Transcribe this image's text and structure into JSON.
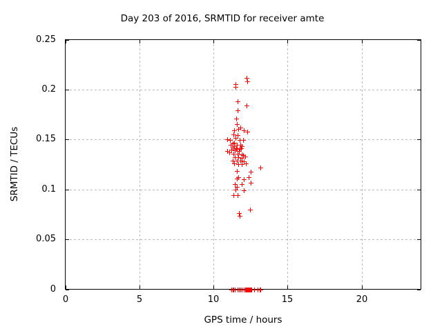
{
  "chart_data": {
    "type": "scatter",
    "title": "Day 203 of 2016, SRMTID for receiver amte",
    "xlabel": "GPS time / hours",
    "ylabel": "SRMTID / TECUs",
    "xlim": [
      0,
      24
    ],
    "ylim": [
      0,
      0.25
    ],
    "xticks": [
      0,
      5,
      10,
      15,
      20
    ],
    "xtick_labels": [
      "0",
      "5",
      "10",
      "15",
      "20"
    ],
    "yticks": [
      0,
      0.05,
      0.1,
      0.15,
      0.2,
      0.25
    ],
    "ytick_labels": [
      "0",
      "0.05",
      "0.1",
      "0.15",
      "0.2",
      "0.25"
    ],
    "grid": true,
    "grid_style": "dotted",
    "grid_color": "#b8b8b8",
    "legend_position": "none",
    "marker": "plus",
    "marker_color": "#ff0000",
    "series": [
      {
        "name": "SRMTID",
        "points": [
          [
            12.22,
            0.2115
          ],
          [
            12.26,
            0.2085
          ],
          [
            11.47,
            0.2055
          ],
          [
            11.5,
            0.2025
          ],
          [
            11.64,
            0.1885
          ],
          [
            12.22,
            0.184
          ],
          [
            11.63,
            0.179
          ],
          [
            11.52,
            0.1712
          ],
          [
            11.59,
            0.1655
          ],
          [
            11.83,
            0.162
          ],
          [
            11.67,
            0.1605
          ],
          [
            11.41,
            0.1592
          ],
          [
            12.06,
            0.159
          ],
          [
            12.29,
            0.158
          ],
          [
            11.36,
            0.1552
          ],
          [
            11.63,
            0.1545
          ],
          [
            11.47,
            0.1518
          ],
          [
            10.94,
            0.15
          ],
          [
            11.75,
            0.1498
          ],
          [
            11.13,
            0.1494
          ],
          [
            11.98,
            0.1494
          ],
          [
            11.41,
            0.1466
          ],
          [
            11.28,
            0.146
          ],
          [
            11.16,
            0.1448
          ],
          [
            11.59,
            0.1447
          ],
          [
            11.83,
            0.1444
          ],
          [
            11.39,
            0.1436
          ],
          [
            11.9,
            0.143
          ],
          [
            11.31,
            0.142
          ],
          [
            11.59,
            0.1413
          ],
          [
            11.87,
            0.1413
          ],
          [
            11.75,
            0.1406
          ],
          [
            11.52,
            0.1405
          ],
          [
            11.21,
            0.1397
          ],
          [
            11.44,
            0.139
          ],
          [
            10.93,
            0.1383
          ],
          [
            11.72,
            0.1383
          ],
          [
            11.05,
            0.1373
          ],
          [
            11.36,
            0.136
          ],
          [
            11.63,
            0.1355
          ],
          [
            11.9,
            0.135
          ],
          [
            11.98,
            0.134
          ],
          [
            12.14,
            0.1327
          ],
          [
            11.44,
            0.132
          ],
          [
            11.67,
            0.132
          ],
          [
            11.9,
            0.1313
          ],
          [
            11.28,
            0.129
          ],
          [
            11.56,
            0.1286
          ],
          [
            11.83,
            0.1286
          ],
          [
            12.06,
            0.1281
          ],
          [
            12.19,
            0.1263
          ],
          [
            11.41,
            0.1258
          ],
          [
            11.67,
            0.1256
          ],
          [
            11.93,
            0.1251
          ],
          [
            13.15,
            0.1217
          ],
          [
            11.56,
            0.1186
          ],
          [
            12.5,
            0.1175
          ],
          [
            11.67,
            0.112
          ],
          [
            12.37,
            0.112
          ],
          [
            11.59,
            0.1106
          ],
          [
            12.06,
            0.1101
          ],
          [
            12.53,
            0.1066
          ],
          [
            11.44,
            0.1055
          ],
          [
            11.9,
            0.105
          ],
          [
            11.56,
            0.1027
          ],
          [
            11.47,
            0.0997
          ],
          [
            12.03,
            0.0992
          ],
          [
            11.36,
            0.0944
          ],
          [
            11.63,
            0.094
          ],
          [
            12.45,
            0.0796
          ],
          [
            11.72,
            0.076
          ],
          [
            11.75,
            0.0737
          ],
          [
            11.21,
            0
          ],
          [
            11.28,
            0
          ],
          [
            11.35,
            0
          ],
          [
            11.44,
            0
          ],
          [
            11.63,
            0
          ],
          [
            11.72,
            0
          ],
          [
            11.81,
            0
          ],
          [
            11.91,
            0
          ],
          [
            12.05,
            0
          ],
          [
            12.15,
            0
          ],
          [
            12.19,
            0
          ],
          [
            12.24,
            0
          ],
          [
            12.28,
            0
          ],
          [
            12.33,
            0
          ],
          [
            12.38,
            0
          ],
          [
            12.42,
            0
          ],
          [
            12.47,
            0
          ],
          [
            12.51,
            0
          ],
          [
            12.55,
            0
          ],
          [
            12.75,
            0
          ],
          [
            12.96,
            0
          ],
          [
            13.1,
            0
          ],
          [
            13.16,
            0
          ]
        ]
      }
    ]
  }
}
